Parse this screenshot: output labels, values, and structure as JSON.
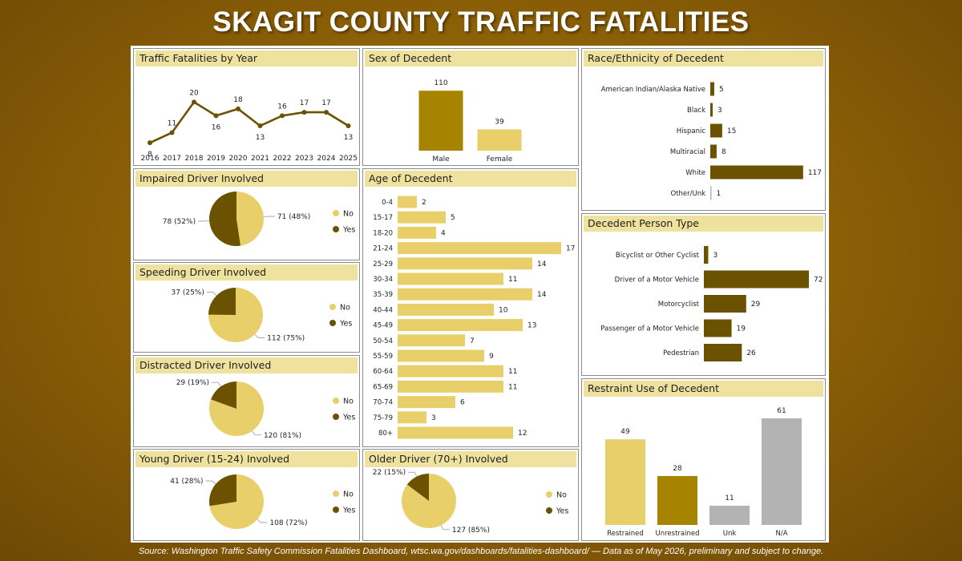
{
  "title": "SKAGIT COUNTY TRAFFIC FATALITIES",
  "source": "Source: Washington Traffic Safety Commission Fatalities Dashboard, wtsc.wa.gov/dashboards/fatalities-dashboard/ — Data as of May 2026, preliminary and subject to change.",
  "colors": {
    "gold_light": "#e8cf6a",
    "gold_dark": "#6b5200",
    "olive": "#a68400",
    "grey": "#b3b3b3",
    "title_bar": "#efe29f"
  },
  "panels": {
    "by_year": "Traffic Fatalities by Year",
    "sex": "Sex of Decedent",
    "race": "Race/Ethnicity of Decedent",
    "impaired": "Impaired Driver Involved",
    "age": "Age of Decedent",
    "speeding": "Speeding Driver Involved",
    "distracted": "Distracted Driver Involved",
    "person_type": "Decedent Person Type",
    "young": "Young Driver (15-24) Involved",
    "older": "Older Driver (70+) Involved",
    "restraint": "Restraint Use of Decedent"
  },
  "chart_data": [
    {
      "id": "by_year",
      "type": "line",
      "title": "Traffic Fatalities by Year",
      "x": [
        "2016",
        "2017",
        "2018",
        "2019",
        "2020",
        "2021",
        "2022",
        "2023",
        "2024",
        "2025"
      ],
      "values": [
        8,
        11,
        20,
        16,
        18,
        13,
        16,
        17,
        17,
        13
      ],
      "ylim": [
        0,
        22
      ],
      "grid": false
    },
    {
      "id": "sex",
      "type": "bar",
      "title": "Sex of Decedent",
      "categories": [
        "Male",
        "Female"
      ],
      "values": [
        110,
        39
      ],
      "ylim": [
        0,
        120
      ]
    },
    {
      "id": "race",
      "type": "bar",
      "orientation": "horizontal",
      "title": "Race/Ethnicity of Decedent",
      "categories": [
        "American Indian/Alaska Native",
        "Black",
        "Hispanic",
        "Multiracial",
        "White",
        "Other/Unk"
      ],
      "values": [
        5,
        3,
        15,
        8,
        117,
        1
      ]
    },
    {
      "id": "impaired",
      "type": "pie",
      "title": "Impaired Driver Involved",
      "labels": [
        "No",
        "Yes"
      ],
      "values": [
        71,
        78
      ],
      "percent_labels": [
        "71 (48%)",
        "78 (52%)"
      ]
    },
    {
      "id": "age",
      "type": "bar",
      "orientation": "horizontal",
      "title": "Age of Decedent",
      "categories": [
        "0-4",
        "15-17",
        "18-20",
        "21-24",
        "25-29",
        "30-34",
        "35-39",
        "40-44",
        "45-49",
        "50-54",
        "55-59",
        "60-64",
        "65-69",
        "70-74",
        "75-79",
        "80+"
      ],
      "values": [
        2,
        5,
        4,
        17,
        14,
        11,
        14,
        10,
        13,
        7,
        9,
        11,
        11,
        6,
        3,
        12
      ]
    },
    {
      "id": "speeding",
      "type": "pie",
      "title": "Speeding Driver Involved",
      "labels": [
        "No",
        "Yes"
      ],
      "values": [
        112,
        37
      ],
      "percent_labels": [
        "112 (75%)",
        "37 (25%)"
      ]
    },
    {
      "id": "distracted",
      "type": "pie",
      "title": "Distracted Driver Involved",
      "labels": [
        "No",
        "Yes"
      ],
      "values": [
        120,
        29
      ],
      "percent_labels": [
        "120 (81%)",
        "29 (19%)"
      ]
    },
    {
      "id": "person_type",
      "type": "bar",
      "orientation": "horizontal",
      "title": "Decedent Person Type",
      "categories": [
        "Bicyclist or Other Cyclist",
        "Driver of a Motor Vehicle",
        "Motorcyclist",
        "Passenger of a Motor Vehicle",
        "Pedestrian"
      ],
      "values": [
        3,
        72,
        29,
        19,
        26
      ]
    },
    {
      "id": "young",
      "type": "pie",
      "title": "Young Driver (15-24) Involved",
      "labels": [
        "No",
        "Yes"
      ],
      "values": [
        108,
        41
      ],
      "percent_labels": [
        "108 (72%)",
        "41 (28%)"
      ]
    },
    {
      "id": "older",
      "type": "pie",
      "title": "Older Driver (70+) Involved",
      "labels": [
        "No",
        "Yes"
      ],
      "values": [
        127,
        22
      ],
      "percent_labels": [
        "127 (85%)",
        "22 (15%)"
      ]
    },
    {
      "id": "restraint",
      "type": "bar",
      "title": "Restraint Use of Decedent",
      "categories": [
        "Restrained",
        "Unrestrained",
        "Unk",
        "N/A"
      ],
      "values": [
        49,
        28,
        11,
        61
      ],
      "ylim": [
        0,
        65
      ]
    }
  ]
}
